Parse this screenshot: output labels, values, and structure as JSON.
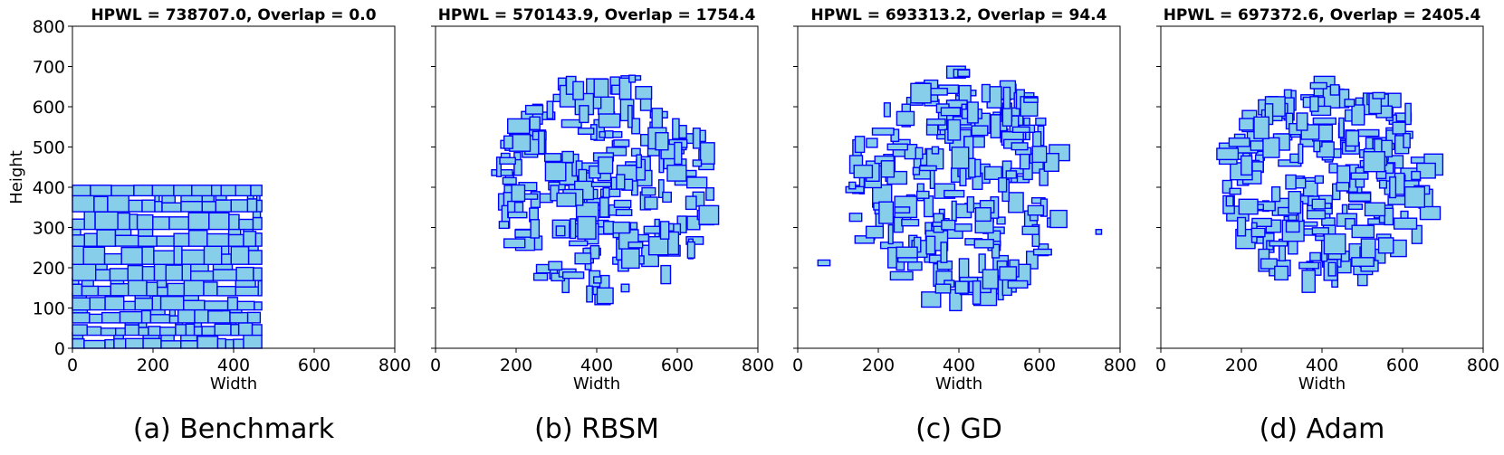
{
  "figure": {
    "ylabel": "Height",
    "xlabel": "Width",
    "xlim": [
      0,
      800
    ],
    "ylim": [
      0,
      800
    ],
    "xticks": [
      0,
      200,
      400,
      600,
      800
    ],
    "yticks": [
      0,
      100,
      200,
      300,
      400,
      500,
      600,
      700,
      800
    ],
    "block_fill": "#87ceeb",
    "block_edge": "#0000ff"
  },
  "chart_data": [
    {
      "type": "scatter",
      "title": "HPWL = 738707.0, Overlap = 0.0",
      "caption": "(a) Benchmark",
      "xlabel": "Width",
      "ylabel": "Height",
      "xlim": [
        0,
        800
      ],
      "ylim": [
        0,
        800
      ],
      "layout": "packed-grid",
      "region": {
        "xmin": 0,
        "xmax": 470,
        "ymin": 0,
        "ymax": 405
      },
      "block_count": 230,
      "seed": 11
    },
    {
      "type": "scatter",
      "title": "HPWL = 570143.9, Overlap = 1754.4",
      "caption": "(b) RBSM",
      "xlabel": "Width",
      "ylabel": "",
      "xlim": [
        0,
        800
      ],
      "ylim": [
        0,
        800
      ],
      "layout": "cluster",
      "region": {
        "cx": 420,
        "cy": 400,
        "rx": 270,
        "ry": 280
      },
      "block_count": 230,
      "seed": 23
    },
    {
      "type": "scatter",
      "title": "HPWL = 693313.2, Overlap = 94.4",
      "caption": "(c) GD",
      "xlabel": "Width",
      "ylabel": "",
      "xlim": [
        0,
        800
      ],
      "ylim": [
        0,
        800
      ],
      "layout": "cluster",
      "region": {
        "cx": 400,
        "cy": 400,
        "rx": 270,
        "ry": 290
      },
      "block_count": 230,
      "seed": 37,
      "outliers": [
        [
          50,
          205,
          30,
          14
        ],
        [
          740,
          283,
          14,
          12
        ]
      ]
    },
    {
      "type": "scatter",
      "title": "HPWL = 697372.6, Overlap = 2405.4",
      "caption": "(d) Adam",
      "xlabel": "Width",
      "ylabel": "",
      "xlim": [
        0,
        800
      ],
      "ylim": [
        0,
        800
      ],
      "layout": "cluster",
      "region": {
        "cx": 420,
        "cy": 410,
        "rx": 270,
        "ry": 250
      },
      "block_count": 230,
      "seed": 53
    }
  ]
}
